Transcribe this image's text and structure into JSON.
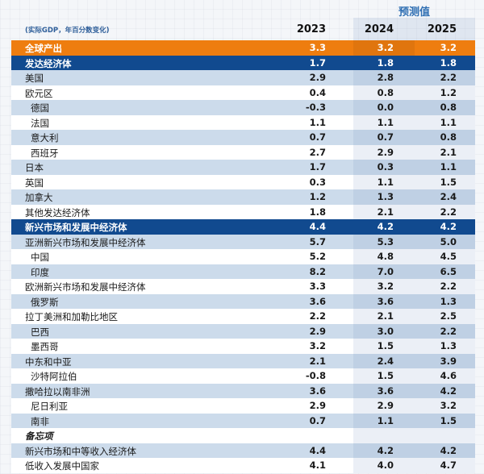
{
  "header": {
    "forecast_label": "预测值",
    "unit_label": "(实际GDP，年百分数变化)",
    "years": [
      "2023",
      "2024",
      "2025"
    ]
  },
  "rows": [
    {
      "label": "全球产出",
      "style": "orange",
      "values": [
        "3.3",
        "3.2",
        "3.2"
      ]
    },
    {
      "label": "发达经济体",
      "style": "dark",
      "values": [
        "1.7",
        "1.8",
        "1.8"
      ]
    },
    {
      "label": "美国",
      "style": "blue",
      "values": [
        "2.9",
        "2.8",
        "2.2"
      ]
    },
    {
      "label": "欧元区",
      "style": "white",
      "values": [
        "0.4",
        "0.8",
        "1.2"
      ]
    },
    {
      "label": "德国",
      "style": "blue ind",
      "values": [
        "-0.3",
        "0.0",
        "0.8"
      ]
    },
    {
      "label": "法国",
      "style": "white ind",
      "values": [
        "1.1",
        "1.1",
        "1.1"
      ]
    },
    {
      "label": "意大利",
      "style": "blue ind",
      "values": [
        "0.7",
        "0.7",
        "0.8"
      ]
    },
    {
      "label": "西班牙",
      "style": "white ind",
      "values": [
        "2.7",
        "2.9",
        "2.1"
      ]
    },
    {
      "label": "日本",
      "style": "blue",
      "values": [
        "1.7",
        "0.3",
        "1.1"
      ]
    },
    {
      "label": "英国",
      "style": "white",
      "values": [
        "0.3",
        "1.1",
        "1.5"
      ]
    },
    {
      "label": "加拿大",
      "style": "blue",
      "values": [
        "1.2",
        "1.3",
        "2.4"
      ]
    },
    {
      "label": "其他发达经济体",
      "style": "white",
      "values": [
        "1.8",
        "2.1",
        "2.2"
      ]
    },
    {
      "label": "新兴市场和发展中经济体",
      "style": "dark",
      "values": [
        "4.4",
        "4.2",
        "4.2"
      ]
    },
    {
      "label": "亚洲新兴市场和发展中经济体",
      "style": "blue",
      "values": [
        "5.7",
        "5.3",
        "5.0"
      ]
    },
    {
      "label": "中国",
      "style": "white ind",
      "values": [
        "5.2",
        "4.8",
        "4.5"
      ]
    },
    {
      "label": "印度",
      "style": "blue ind",
      "values": [
        "8.2",
        "7.0",
        "6.5"
      ]
    },
    {
      "label": "欧洲新兴市场和发展中经济体",
      "style": "white",
      "values": [
        "3.3",
        "3.2",
        "2.2"
      ]
    },
    {
      "label": "俄罗斯",
      "style": "blue ind",
      "values": [
        "3.6",
        "3.6",
        "1.3"
      ]
    },
    {
      "label": "拉丁美洲和加勒比地区",
      "style": "white",
      "values": [
        "2.2",
        "2.1",
        "2.5"
      ]
    },
    {
      "label": "巴西",
      "style": "blue ind",
      "values": [
        "2.9",
        "3.0",
        "2.2"
      ]
    },
    {
      "label": "墨西哥",
      "style": "white ind",
      "values": [
        "3.2",
        "1.5",
        "1.3"
      ]
    },
    {
      "label": "中东和中亚",
      "style": "blue",
      "values": [
        "2.1",
        "2.4",
        "3.9"
      ]
    },
    {
      "label": "沙特阿拉伯",
      "style": "white ind",
      "values": [
        "-0.8",
        "1.5",
        "4.6"
      ]
    },
    {
      "label": "撒哈拉以南非洲",
      "style": "blue",
      "values": [
        "3.6",
        "3.6",
        "4.2"
      ]
    },
    {
      "label": "尼日利亚",
      "style": "white ind",
      "values": [
        "2.9",
        "2.9",
        "3.2"
      ]
    },
    {
      "label": "南非",
      "style": "blue ind",
      "values": [
        "0.7",
        "1.1",
        "1.5"
      ]
    },
    {
      "label": "备忘项",
      "style": "white memo",
      "values": [
        "",
        "",
        ""
      ]
    },
    {
      "label": "新兴市场和中等收入经济体",
      "style": "blue",
      "values": [
        "4.4",
        "4.2",
        "4.2"
      ]
    },
    {
      "label": "低收入发展中国家",
      "style": "white",
      "values": [
        "4.1",
        "4.0",
        "4.7"
      ]
    }
  ]
}
